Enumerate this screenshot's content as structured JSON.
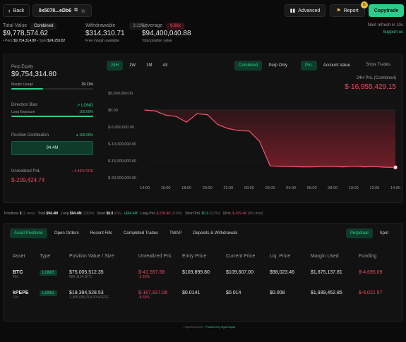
{
  "nav": {
    "back_label": "Back",
    "address": "0x5078...eDb6",
    "advanced_label": "Advanced",
    "report_label": "Report",
    "report_badge": "10",
    "copytrade_label": "Copytrade"
  },
  "summary": {
    "total_value_label": "Total Value",
    "total_value_mode": "Combined",
    "total_value": "$9,778,574.62",
    "perp_label": "Perp",
    "perp_value": "$9,754,314.80",
    "spot_label": "Spot",
    "spot_value": "$24,259.82",
    "withdrawable_label": "Withdrawable",
    "withdrawable_pct": "3.22%",
    "withdrawable_value": "$314,310.71",
    "withdrawable_sub": "Free margin available",
    "leverage_label": "Leverage",
    "leverage_badge": "9.66x",
    "leverage_value": "$94,400,040.88",
    "leverage_sub": "Total position value",
    "next_refresh": "Next refresh in 10s",
    "support": "Support us"
  },
  "left": {
    "perp_equity_label": "Perp Equity",
    "perp_equity": "$9,754,314.80",
    "margin_usage_label": "Margin Usage",
    "margin_usage": "39.11%",
    "margin_fill": 0.3911,
    "direction_label": "Direction Bias",
    "direction_value": "LONG",
    "long_exposure_label": "Long Exposure",
    "long_exposure": "100.00%",
    "long_fill": 1.0,
    "position_dist_label": "Position Distribution",
    "position_dist_value": "100.00%",
    "position_box": "94.4M",
    "unrealized_label": "Unrealized PnL",
    "unrealized_pct": "5.49% ROE",
    "unrealized_value": "$-209,424.74"
  },
  "chart_controls": {
    "ranges": [
      "24H",
      "1W",
      "1M",
      "All"
    ],
    "active_range": "24H",
    "modes": [
      "Combined",
      "Perp Only"
    ],
    "metrics": [
      "PnL",
      "Account Value"
    ],
    "show_trades": "Show Trades",
    "chart_title": "24H PnL (Combined)",
    "chart_value": "$-16,955,429.15"
  },
  "chart_data": {
    "type": "area",
    "x": [
      "14:00",
      "15:00",
      "16:00",
      "17:00",
      "18:00",
      "19:00",
      "20:00",
      "21:00",
      "22:00",
      "23:00",
      "00:00",
      "01:00",
      "02:00",
      "03:00",
      "04:00",
      "05:00",
      "06:00",
      "07:00",
      "08:00",
      "09:00",
      "10:00",
      "11:00",
      "12:00",
      "13:00",
      "14:00"
    ],
    "y": [
      0,
      -300000,
      -1500000,
      -1900000,
      -3600000,
      -1100000,
      -1400000,
      -4300000,
      -5500000,
      -6100000,
      -6200000,
      -9300000,
      -16500000,
      -16700000,
      -16700000,
      -16800000,
      -16800000,
      -16700000,
      -16700000,
      -16800000,
      -16600000,
      -16800000,
      -16700000,
      -16900000,
      -16950000
    ],
    "x_ticks": [
      "14:00",
      "16:00",
      "18:00",
      "20:00",
      "22:00",
      "00:00",
      "02:00",
      "04:00",
      "06:00",
      "08:00",
      "10:00",
      "12:00",
      "14:00"
    ],
    "y_ticks": [
      "$5,000,000.00",
      "$0.00",
      "$-5,000,000.00",
      "$-10,000,000.00",
      "$-15,000,000.00",
      "$-20,000,000.00"
    ],
    "ylim": [
      -20000000,
      5000000
    ],
    "line_color": "#f2546c",
    "fill_color": "#7a1f2a"
  },
  "stats_bar": {
    "positions_label": "Positions",
    "positions_value": "2",
    "positions_sub": "(1 view)",
    "total_label": "Total",
    "total_value": "$94.4M",
    "long_label": "Long",
    "long_value": "$94.4M",
    "long_pct": "(100%)",
    "short_label": "Short",
    "short_value": "$0.0",
    "short_pct": "(0%)",
    "net_value": "+$94.4M",
    "long_pnl_label": "Long PnL",
    "long_pnl": "$-209.4K",
    "long_pnl_pct": "(0.0%)",
    "short_pnl_label": "Short PnL",
    "short_pnl": "$0.0",
    "short_pnl_pct": "(0.0%)",
    "upnl_label": "UPnL",
    "upnl": "$-209.4K",
    "upnl_pct": "(0% dnet)"
  },
  "tabs": [
    "Asset Positions",
    "Open Orders",
    "Recent Fills",
    "Completed Trades",
    "TWAP",
    "Deposits & Withdrawals"
  ],
  "active_tab": "Asset Positions",
  "type_tabs": [
    "Perpetual",
    "Spot"
  ],
  "table": {
    "headers": [
      "Asset",
      "Type",
      "Position Value / Size",
      "Unrealized PnL",
      "Entry Price",
      "Current Price",
      "Liq. Price",
      "Margin Used",
      "Funding"
    ],
    "rows": [
      {
        "asset": "BTC",
        "lev": "40x",
        "type": "LONG",
        "value": "$75,005,512.35",
        "size": "684.1134 BTC",
        "pnl": "$-41,597.68",
        "pnl_pct": "-2.22%",
        "entry": "$109,899.80",
        "current": "$109,607.00",
        "liq": "$98,023.46",
        "margin": "$1,875,137.81",
        "funding": "$-4,695.09"
      },
      {
        "asset": "kPEPE",
        "lev": "10x",
        "type": "LONG",
        "value": "$19,394,528.53",
        "size": "1,385,695,014.00 kPEPE",
        "pnl": "$-167,827.06",
        "pnl_pct": "-8.65%",
        "entry": "$0.0141",
        "current": "$0.014",
        "liq": "$0.008",
        "margin": "$1,939,452.85",
        "funding": "$-6,021.57"
      }
    ]
  },
  "footer": {
    "left": "HyperDash.info",
    "right": "Powered by Hyperliquid"
  }
}
